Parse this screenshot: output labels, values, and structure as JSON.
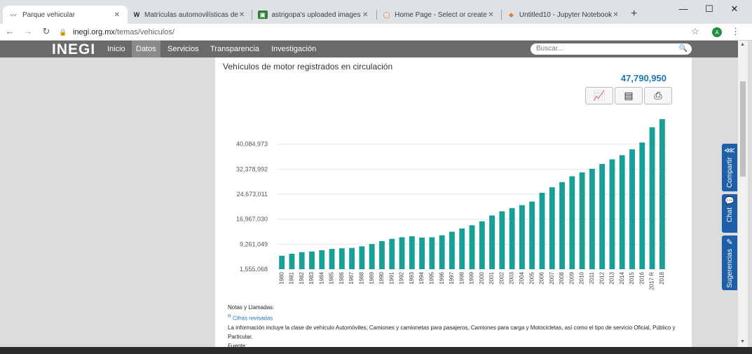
{
  "browser": {
    "tabs": [
      {
        "title": "Parque vehicular",
        "favicon": "inegi-icon",
        "active": true
      },
      {
        "title": "Matrículas automovilísticas de",
        "favicon": "W",
        "active": false
      },
      {
        "title": "astrigopa's uploaded images",
        "favicon": "image-icon",
        "active": false
      },
      {
        "title": "Home Page - Select or create",
        "favicon": "jupyter-icon",
        "active": false
      },
      {
        "title": "Untitled10 - Jupyter Notebook",
        "favicon": "notebook-icon",
        "active": false
      }
    ],
    "url_host": "inegi.org.mx",
    "url_path": "/temas/vehiculos/",
    "profile_initial": "A"
  },
  "site": {
    "logo": "INEGI",
    "nav": [
      "Inicio",
      "Datos",
      "Servicios",
      "Transparencia",
      "Investigación"
    ],
    "nav_selected": "Datos",
    "search_placeholder": "Buscar..."
  },
  "chart_data": {
    "type": "bar",
    "title": "Vehículos de motor registrados en circulación",
    "total_label": "47,790,950",
    "color": "#17a096",
    "categories": [
      "1980",
      "1981",
      "1982",
      "1983",
      "1984",
      "1985",
      "1986",
      "1987",
      "1988",
      "1989",
      "1990",
      "1991",
      "1992",
      "1993",
      "1994",
      "1995",
      "1996",
      "1997",
      "1998",
      "1999",
      "2000",
      "2001",
      "2002",
      "2003",
      "2004",
      "2005",
      "2006",
      "2007",
      "2008",
      "2009",
      "2010",
      "2011",
      "2012",
      "2013",
      "2014",
      "2015",
      "2016",
      "2017 R",
      "2018"
    ],
    "values": [
      5700000,
      6300000,
      6800000,
      7000000,
      7400000,
      7800000,
      8000000,
      8100000,
      8600000,
      9300000,
      10200000,
      10900000,
      11400000,
      11700000,
      11300000,
      11400000,
      12000000,
      13100000,
      14100000,
      15100000,
      16300000,
      18100000,
      19400000,
      20400000,
      21300000,
      22400000,
      25100000,
      26800000,
      28400000,
      30200000,
      31400000,
      32500000,
      34000000,
      35400000,
      36700000,
      38500000,
      40600000,
      45300000,
      47790950
    ],
    "yticks": [
      1555068,
      9261049,
      16967030,
      24673011,
      32378992,
      40084973
    ],
    "ytick_labels": [
      "1,555,068",
      "9,261,049",
      "16,967,030",
      "24,673,011",
      "32,378,992",
      "40,084,973"
    ],
    "ylim": [
      1555068,
      47790950
    ],
    "grid": true
  },
  "notes": {
    "heading": "Notas y Llamadas:",
    "revised_marker": "R",
    "revised_text": "Cifras revisadas",
    "body": "La información incluye la clase de vehículo Automóviles, Camiones y camionetas para pasajeros, Camiones para carga y Motocicletas, así como el tipo de servicio Oficial, Público y Particular.",
    "source_label": "Fuente:"
  },
  "side_widgets": [
    "Compartir",
    "Chat",
    "Sugerencias"
  ]
}
